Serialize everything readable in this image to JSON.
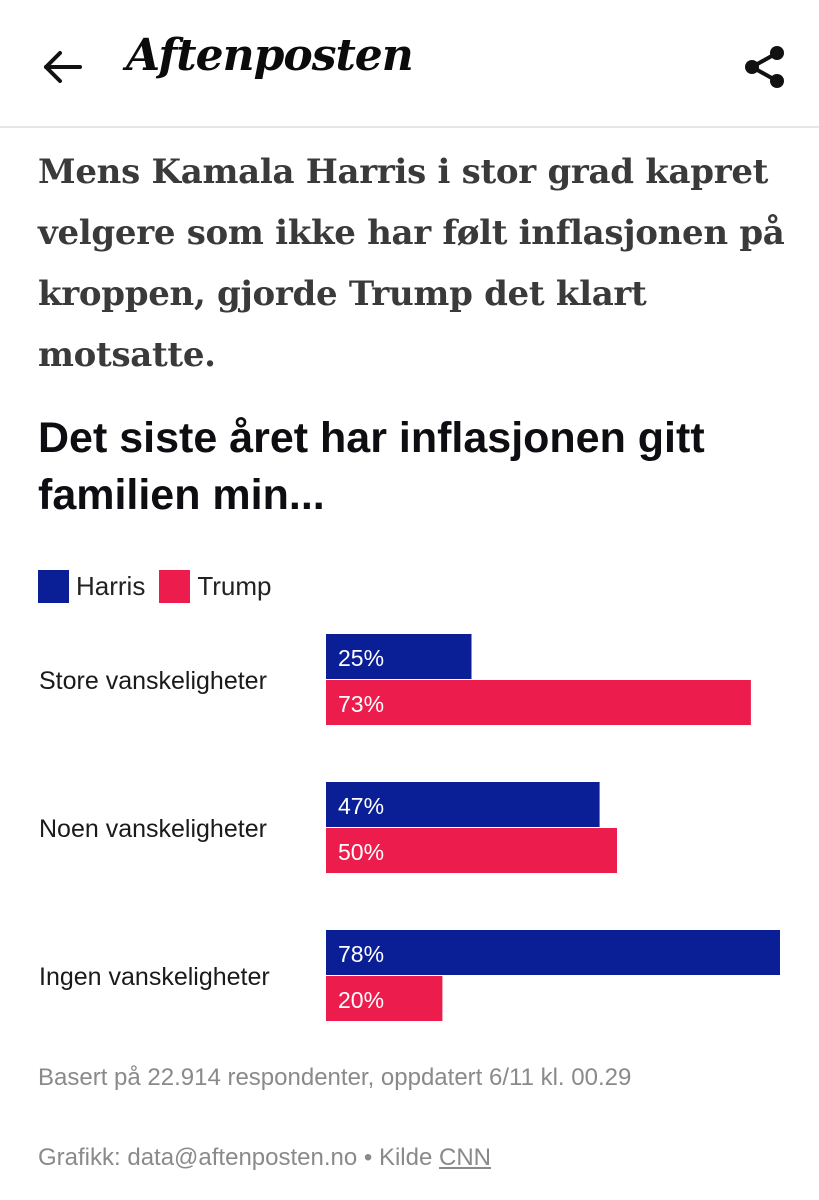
{
  "header": {
    "logo_text": "Aftenposten",
    "back_icon": "arrow-left-icon",
    "share_icon": "share-icon"
  },
  "intro_text": "Mens Kamala Harris i stor grad kapret velgere som ikke har følt inflasjonen på kroppen, gjorde Trump det klart motsatte.",
  "colors": {
    "harris": "#0a1f96",
    "trump": "#ec1c4c"
  },
  "chart_data": {
    "type": "bar",
    "orientation": "horizontal",
    "title": "Det siste året har inflasjonen gitt familien min...",
    "categories": [
      "Store vanskeligheter",
      "Noen vanskeligheter",
      "Ingen vanskeligheter"
    ],
    "series": [
      {
        "name": "Harris",
        "values": [
          25,
          47,
          78
        ],
        "labels": [
          "25%",
          "47%",
          "78%"
        ]
      },
      {
        "name": "Trump",
        "values": [
          73,
          50,
          20
        ],
        "labels": [
          "73%",
          "50%",
          "20%"
        ]
      }
    ],
    "xlim": [
      0,
      78
    ],
    "legend_position": "top-left",
    "grid": false
  },
  "footer": {
    "note": "Basert på 22.914 respondenter, oppdatert 6/11 kl. 00.29",
    "credit_prefix": "Grafikk: data@aftenposten.no • Kilde ",
    "source_link": "CNN"
  }
}
